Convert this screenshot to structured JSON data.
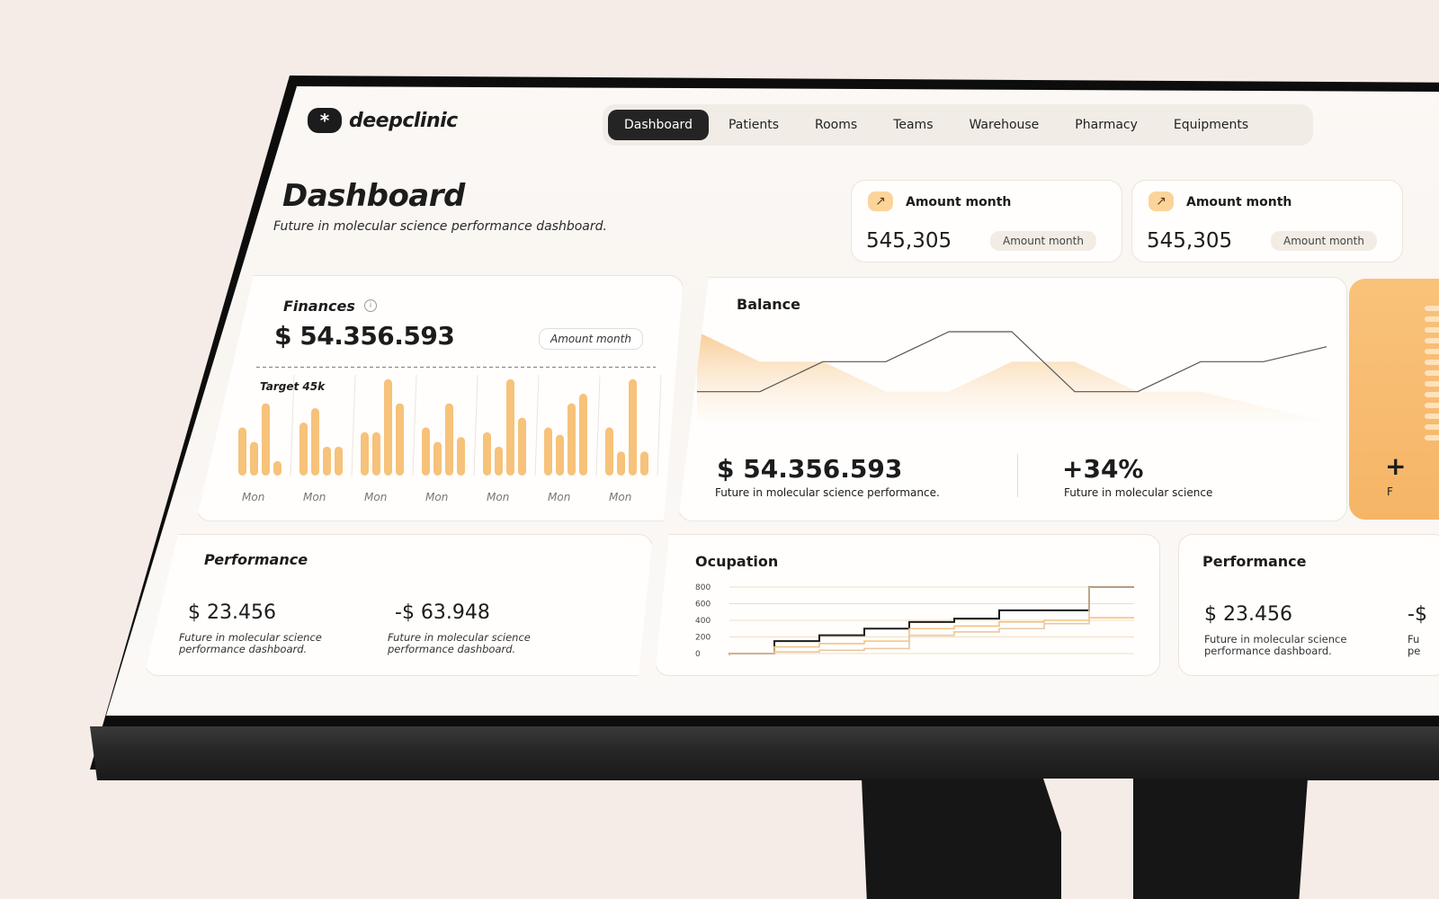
{
  "app": {
    "name": "deepclinic",
    "logo_glyph": "*"
  },
  "nav": {
    "items": [
      {
        "label": "Dashboard",
        "active": true
      },
      {
        "label": "Patients"
      },
      {
        "label": "Rooms"
      },
      {
        "label": "Teams"
      },
      {
        "label": "Warehouse"
      },
      {
        "label": "Pharmacy"
      },
      {
        "label": "Equipments"
      }
    ]
  },
  "page": {
    "title": "Dashboard",
    "subtitle": "Future in molecular science performance dashboard."
  },
  "stats": [
    {
      "icon": "trend-up-icon",
      "label": "Amount month",
      "value": "545,305",
      "pill": "Amount month"
    },
    {
      "icon": "trend-up-icon",
      "label": "Amount month",
      "value": "545,305",
      "pill": "Amount month"
    }
  ],
  "finances": {
    "title": "Finances",
    "value": "$ 54.356.593",
    "pill": "Amount month",
    "target_label": "Target 45k"
  },
  "balance": {
    "title": "Balance",
    "value": "$ 54.356.593",
    "value_sub": "Future in molecular science performance.",
    "pct": "+34%",
    "pct_sub": "Future in molecular science"
  },
  "orange_card": {
    "value": "+",
    "sub": "F"
  },
  "performance": {
    "title": "Performance",
    "a_value": "$ 23.456",
    "a_sub": "Future in molecular science performance dashboard.",
    "b_value": "-$ 63.948",
    "b_sub": "Future in molecular science performance dashboard."
  },
  "performance_right": {
    "title": "Performance",
    "a_value": "$ 23.456",
    "a_sub": "Future in molecular science performance dashboard.",
    "b_value": "-$",
    "b_sub": "Fu pe"
  },
  "ocupation": {
    "title": "Ocupation"
  },
  "colors": {
    "accent": "#f7bd6e",
    "accent_light": "#fbd49a",
    "dark": "#242424"
  },
  "chart_data": [
    {
      "type": "bar",
      "title": "Finances",
      "categories": [
        "Mon",
        "Mon",
        "Mon",
        "Mon",
        "Mon",
        "Mon",
        "Mon"
      ],
      "series": [
        {
          "values": [
            20,
            22,
            18,
            20,
            18,
            20,
            20
          ]
        },
        {
          "values": [
            14,
            28,
            18,
            14,
            12,
            17,
            10
          ]
        },
        {
          "values": [
            30,
            12,
            40,
            30,
            40,
            30,
            40
          ]
        },
        {
          "values": [
            6,
            12,
            30,
            16,
            24,
            34,
            10
          ]
        }
      ],
      "target": 45,
      "ylim": [
        0,
        50
      ]
    },
    {
      "type": "area",
      "title": "Balance",
      "x": [
        0,
        1,
        2,
        3,
        4,
        5,
        6,
        7,
        8,
        9,
        10
      ],
      "series": [
        {
          "values": [
            60,
            40,
            40,
            20,
            20,
            40,
            40,
            20,
            20,
            10,
            0
          ]
        },
        {
          "values": [
            20,
            20,
            40,
            40,
            60,
            60,
            20,
            20,
            40,
            40,
            50
          ]
        }
      ]
    },
    {
      "type": "line",
      "title": "Ocupation",
      "y_ticks": [
        "800",
        "600",
        "400",
        "200",
        "0"
      ],
      "ylim": [
        0,
        800
      ],
      "series": [
        {
          "values": [
            0,
            150,
            220,
            300,
            380,
            420,
            520,
            520,
            800,
            800
          ]
        },
        {
          "values": [
            0,
            80,
            120,
            150,
            300,
            330,
            380,
            400,
            430,
            430
          ]
        },
        {
          "values": [
            0,
            20,
            40,
            60,
            220,
            260,
            300,
            360,
            800,
            800
          ]
        }
      ]
    }
  ]
}
